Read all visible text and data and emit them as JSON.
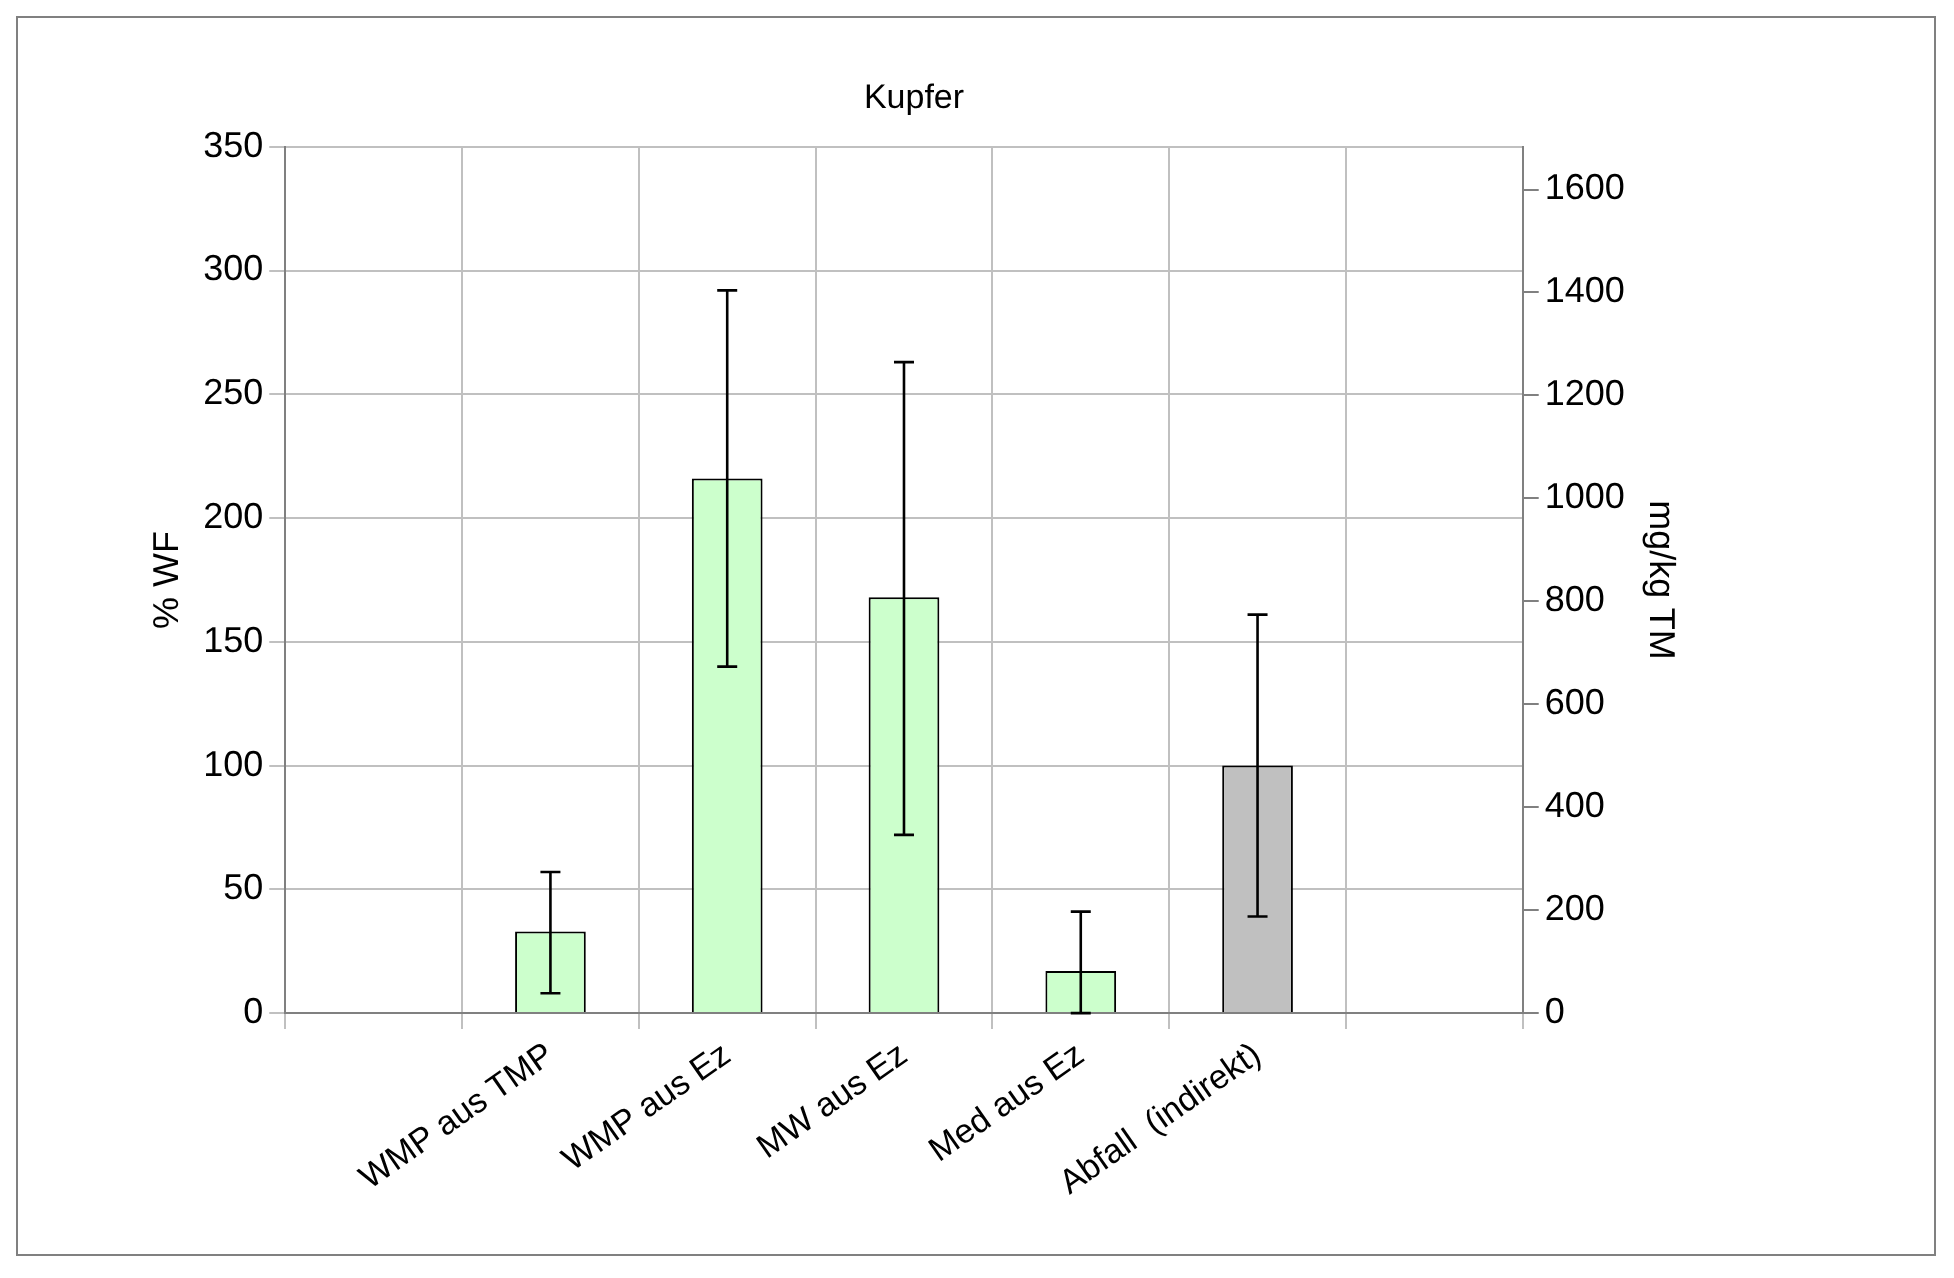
{
  "chart_data": {
    "type": "bar",
    "title": "Kupfer",
    "ylabel": "% WF",
    "y2label": "mg/kg TM",
    "categories": [
      null,
      "WMP aus TMP",
      "WMP aus Ez",
      "MW aus Ez",
      "Med aus Ez",
      "Abfall  (indirekt)",
      null
    ],
    "values": [
      null,
      33,
      216,
      168,
      17,
      100,
      null
    ],
    "colors": [
      "#ccffcc",
      "#ccffcc",
      "#ccffcc",
      "#ccffcc",
      "#ccffcc",
      "#c0c0c0",
      "#ccffcc"
    ],
    "errors": [
      null,
      [
        8,
        57
      ],
      [
        140,
        292
      ],
      [
        72,
        263
      ],
      [
        0,
        41
      ],
      [
        39,
        161
      ],
      null
    ],
    "ylim": [
      0,
      350
    ],
    "yticks": [
      0,
      50,
      100,
      150,
      200,
      250,
      300,
      350
    ],
    "y2lim": [
      0,
      1683
    ],
    "y2ticks": [
      0,
      200,
      400,
      600,
      800,
      1000,
      1200,
      1400,
      1600
    ],
    "grid": true,
    "legend": false
  }
}
